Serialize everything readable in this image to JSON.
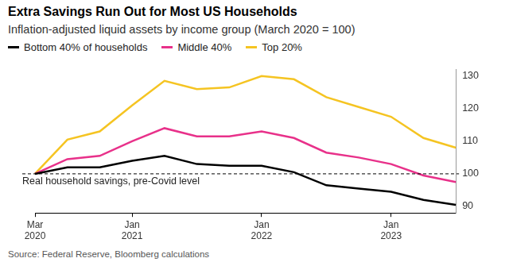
{
  "chart_data": {
    "type": "line",
    "title": "Extra Savings Run Out for Most US Households",
    "subtitle": "Inflation-adjusted liquid assets by income group (March 2020 = 100)",
    "source": "Source: Federal Reserve, Bloomberg calculations",
    "categories": [
      "Mar 2020",
      null,
      null,
      "Jan 2021",
      null,
      null,
      null,
      "Jan 2022",
      null,
      null,
      null,
      "Jan 2023",
      null,
      null
    ],
    "series": [
      {
        "name": "Bottom 40% of households",
        "color": "#000000",
        "values": [
          100,
          102,
          102,
          104,
          105.5,
          103,
          102.5,
          102.5,
          100.5,
          96.5,
          95.5,
          94.5,
          92,
          90.5
        ]
      },
      {
        "name": "Middle 40%",
        "color": "#e8318a",
        "values": [
          100,
          104.5,
          105.5,
          110,
          114,
          111.5,
          111.5,
          113,
          111,
          106.5,
          105,
          103,
          99.5,
          97.5
        ]
      },
      {
        "name": "Top 20%",
        "color": "#f5c422",
        "values": [
          100,
          110.5,
          113,
          121,
          128.5,
          126,
          126.5,
          130,
          129,
          123.5,
          120.5,
          117.5,
          111,
          108
        ]
      }
    ],
    "ylim": [
      88,
      132
    ],
    "yticks": [
      90,
      100,
      110,
      120,
      130
    ],
    "grid": false,
    "legend": "top-left",
    "annotations": [
      {
        "text": "Real household savings, pre-Covid level",
        "y": 100,
        "line_style": "dashed"
      }
    ]
  }
}
